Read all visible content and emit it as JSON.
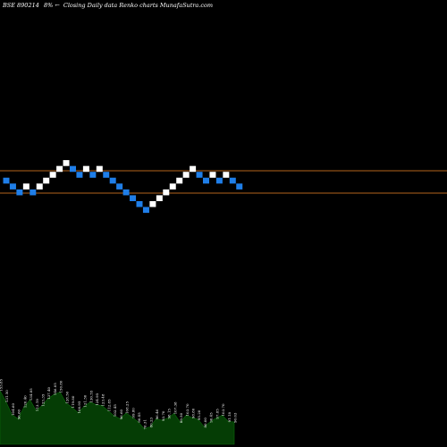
{
  "chart_data": {
    "type": "renko",
    "title": {
      "code": "BSE 890214",
      "change": "8%",
      "arrow": "←",
      "description": "Closing Daily data  Renko  charts MunafaSutra.com"
    },
    "background": "#000000",
    "colors": {
      "up_brick": "#ffffff",
      "down_brick": "#1f7ee8",
      "reference_line": "#b5651d",
      "volume_fill": "#053d05",
      "volume_outline": "#0b6a0b"
    },
    "reference_lines": [
      "upper",
      "lower"
    ],
    "bricks": [
      {
        "dir": "down",
        "level": 12
      },
      {
        "dir": "down",
        "level": 11
      },
      {
        "dir": "down",
        "level": 10
      },
      {
        "dir": "up",
        "level": 11
      },
      {
        "dir": "down",
        "level": 10
      },
      {
        "dir": "up",
        "level": 11
      },
      {
        "dir": "up",
        "level": 12
      },
      {
        "dir": "up",
        "level": 13
      },
      {
        "dir": "up",
        "level": 14
      },
      {
        "dir": "up",
        "level": 15
      },
      {
        "dir": "down",
        "level": 14
      },
      {
        "dir": "down",
        "level": 13
      },
      {
        "dir": "up",
        "level": 14
      },
      {
        "dir": "down",
        "level": 13
      },
      {
        "dir": "up",
        "level": 14
      },
      {
        "dir": "down",
        "level": 13
      },
      {
        "dir": "down",
        "level": 12
      },
      {
        "dir": "down",
        "level": 11
      },
      {
        "dir": "down",
        "level": 10
      },
      {
        "dir": "down",
        "level": 9
      },
      {
        "dir": "down",
        "level": 8
      },
      {
        "dir": "down",
        "level": 7
      },
      {
        "dir": "up",
        "level": 8
      },
      {
        "dir": "up",
        "level": 9
      },
      {
        "dir": "up",
        "level": 10
      },
      {
        "dir": "up",
        "level": 11
      },
      {
        "dir": "up",
        "level": 12
      },
      {
        "dir": "up",
        "level": 13
      },
      {
        "dir": "up",
        "level": 14
      },
      {
        "dir": "down",
        "level": 13
      },
      {
        "dir": "down",
        "level": 12
      },
      {
        "dir": "up",
        "level": 13
      },
      {
        "dir": "down",
        "level": 12
      },
      {
        "dir": "up",
        "level": 13
      },
      {
        "dir": "down",
        "level": 12
      },
      {
        "dir": "down",
        "level": 11
      }
    ],
    "volume_labels": [
      "153.85",
      "131.50",
      "104.60",
      "96.60",
      "120.40",
      "134.85",
      "113.19",
      "123.35",
      "137.40",
      "146.05",
      "150.80",
      "128.50",
      "119.80",
      "108.95",
      "121.50",
      "130.55",
      "124.95",
      "123.48",
      "112.85",
      "102.45",
      "96.60",
      "108.25",
      "99.80",
      "90.45",
      "76.31",
      "80.23",
      "96.46",
      "93.70",
      "98.15",
      "107.38",
      "89.50",
      "103.70",
      "98.80",
      "95.20",
      "80.00",
      "90.45",
      "97.85",
      "103.70",
      "91.18",
      "90.03"
    ]
  }
}
